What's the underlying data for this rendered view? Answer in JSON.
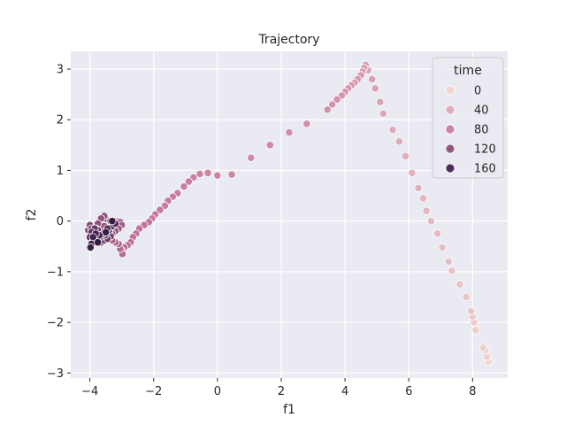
{
  "chart_data": {
    "type": "scatter",
    "title": "Trajectory",
    "xlabel": "f1",
    "ylabel": "f2",
    "xlim": [
      -4.6,
      9.1
    ],
    "ylim": [
      -3.1,
      3.35
    ],
    "xticks": [
      -4,
      -2,
      0,
      2,
      4,
      6,
      8
    ],
    "yticks": [
      -3,
      -2,
      -1,
      0,
      1,
      2,
      3
    ],
    "grid": true,
    "hue_variable": "time",
    "hue_range": [
      0,
      180
    ],
    "legend": {
      "title": "time",
      "placement": "top-right",
      "entries": [
        {
          "label": "0",
          "value": 0
        },
        {
          "label": "40",
          "value": 40
        },
        {
          "label": "80",
          "value": 80
        },
        {
          "label": "120",
          "value": 120
        },
        {
          "label": "160",
          "value": 160
        }
      ]
    },
    "colors": {
      "background": "#eaeaf2",
      "grid": "#ffffff",
      "hue_light": "#f0d6cf",
      "hue_mid": "#c8779e",
      "hue_dark": "#2f1641"
    },
    "points": [
      {
        "x": 8.5,
        "y": -2.78,
        "t": 0
      },
      {
        "x": 8.45,
        "y": -2.68,
        "t": 2
      },
      {
        "x": 8.4,
        "y": -2.55,
        "t": 4
      },
      {
        "x": 8.33,
        "y": -2.5,
        "t": 6
      },
      {
        "x": 8.1,
        "y": -2.15,
        "t": 8
      },
      {
        "x": 8.05,
        "y": -2.0,
        "t": 10
      },
      {
        "x": 8.0,
        "y": -1.88,
        "t": 12
      },
      {
        "x": 7.95,
        "y": -1.78,
        "t": 14
      },
      {
        "x": 7.8,
        "y": -1.5,
        "t": 16
      },
      {
        "x": 7.6,
        "y": -1.25,
        "t": 18
      },
      {
        "x": 7.35,
        "y": -0.98,
        "t": 20
      },
      {
        "x": 7.25,
        "y": -0.8,
        "t": 22
      },
      {
        "x": 7.05,
        "y": -0.52,
        "t": 24
      },
      {
        "x": 6.9,
        "y": -0.25,
        "t": 26
      },
      {
        "x": 6.7,
        "y": 0.0,
        "t": 28
      },
      {
        "x": 6.55,
        "y": 0.2,
        "t": 30
      },
      {
        "x": 6.45,
        "y": 0.45,
        "t": 32
      },
      {
        "x": 6.3,
        "y": 0.65,
        "t": 34
      },
      {
        "x": 6.1,
        "y": 0.95,
        "t": 36
      },
      {
        "x": 5.9,
        "y": 1.28,
        "t": 38
      },
      {
        "x": 5.7,
        "y": 1.57,
        "t": 40
      },
      {
        "x": 5.5,
        "y": 1.8,
        "t": 42
      },
      {
        "x": 5.2,
        "y": 2.12,
        "t": 44
      },
      {
        "x": 5.1,
        "y": 2.35,
        "t": 46
      },
      {
        "x": 4.95,
        "y": 2.62,
        "t": 48
      },
      {
        "x": 4.85,
        "y": 2.8,
        "t": 50
      },
      {
        "x": 4.72,
        "y": 2.98,
        "t": 52
      },
      {
        "x": 4.65,
        "y": 3.08,
        "t": 54
      },
      {
        "x": 4.6,
        "y": 3.02,
        "t": 55
      },
      {
        "x": 4.55,
        "y": 2.95,
        "t": 56
      },
      {
        "x": 4.5,
        "y": 2.88,
        "t": 57
      },
      {
        "x": 4.4,
        "y": 2.8,
        "t": 58
      },
      {
        "x": 4.3,
        "y": 2.73,
        "t": 59
      },
      {
        "x": 4.2,
        "y": 2.68,
        "t": 60
      },
      {
        "x": 4.1,
        "y": 2.62,
        "t": 61
      },
      {
        "x": 4.0,
        "y": 2.55,
        "t": 62
      },
      {
        "x": 3.9,
        "y": 2.48,
        "t": 63
      },
      {
        "x": 3.75,
        "y": 2.4,
        "t": 64
      },
      {
        "x": 3.6,
        "y": 2.3,
        "t": 65
      },
      {
        "x": 3.45,
        "y": 2.2,
        "t": 66
      },
      {
        "x": 2.8,
        "y": 1.92,
        "t": 68
      },
      {
        "x": 2.25,
        "y": 1.75,
        "t": 70
      },
      {
        "x": 1.65,
        "y": 1.5,
        "t": 72
      },
      {
        "x": 1.05,
        "y": 1.25,
        "t": 74
      },
      {
        "x": 0.45,
        "y": 0.92,
        "t": 76
      },
      {
        "x": 0.0,
        "y": 0.9,
        "t": 78
      },
      {
        "x": -0.3,
        "y": 0.95,
        "t": 80
      },
      {
        "x": -0.55,
        "y": 0.93,
        "t": 81
      },
      {
        "x": -0.75,
        "y": 0.86,
        "t": 82
      },
      {
        "x": -0.9,
        "y": 0.78,
        "t": 83
      },
      {
        "x": -1.05,
        "y": 0.68,
        "t": 84
      },
      {
        "x": -1.25,
        "y": 0.55,
        "t": 85
      },
      {
        "x": -1.4,
        "y": 0.48,
        "t": 86
      },
      {
        "x": -1.55,
        "y": 0.4,
        "t": 87
      },
      {
        "x": -1.65,
        "y": 0.3,
        "t": 88
      },
      {
        "x": -1.8,
        "y": 0.22,
        "t": 89
      },
      {
        "x": -1.95,
        "y": 0.13,
        "t": 90
      },
      {
        "x": -2.05,
        "y": 0.05,
        "t": 91
      },
      {
        "x": -2.15,
        "y": -0.02,
        "t": 92
      },
      {
        "x": -2.3,
        "y": -0.08,
        "t": 93
      },
      {
        "x": -2.45,
        "y": -0.15,
        "t": 94
      },
      {
        "x": -2.55,
        "y": -0.25,
        "t": 95
      },
      {
        "x": -2.65,
        "y": -0.32,
        "t": 96
      },
      {
        "x": -2.72,
        "y": -0.42,
        "t": 97
      },
      {
        "x": -2.82,
        "y": -0.48,
        "t": 98
      },
      {
        "x": -2.92,
        "y": -0.52,
        "t": 99
      },
      {
        "x": -3.0,
        "y": -0.58,
        "t": 100
      },
      {
        "x": -2.98,
        "y": -0.65,
        "t": 101
      },
      {
        "x": -3.05,
        "y": -0.55,
        "t": 102
      },
      {
        "x": -3.1,
        "y": -0.45,
        "t": 103
      },
      {
        "x": -3.2,
        "y": -0.42,
        "t": 104
      },
      {
        "x": -3.3,
        "y": -0.38,
        "t": 105
      },
      {
        "x": -3.4,
        "y": -0.32,
        "t": 106
      },
      {
        "x": -3.5,
        "y": -0.28,
        "t": 107
      },
      {
        "x": -3.45,
        "y": -0.2,
        "t": 108
      },
      {
        "x": -3.35,
        "y": -0.1,
        "t": 109
      },
      {
        "x": -3.25,
        "y": -0.05,
        "t": 110
      },
      {
        "x": -3.15,
        "y": 0.0,
        "t": 111
      },
      {
        "x": -3.05,
        "y": -0.02,
        "t": 112
      },
      {
        "x": -3.0,
        "y": -0.08,
        "t": 113
      },
      {
        "x": -3.1,
        "y": -0.15,
        "t": 114
      },
      {
        "x": -3.2,
        "y": -0.2,
        "t": 115
      },
      {
        "x": -3.3,
        "y": -0.25,
        "t": 116
      },
      {
        "x": -3.45,
        "y": -0.3,
        "t": 117
      },
      {
        "x": -3.55,
        "y": -0.35,
        "t": 118
      },
      {
        "x": -3.6,
        "y": -0.25,
        "t": 119
      },
      {
        "x": -3.55,
        "y": -0.1,
        "t": 120
      },
      {
        "x": -3.5,
        "y": 0.05,
        "t": 121
      },
      {
        "x": -3.55,
        "y": 0.1,
        "t": 122
      },
      {
        "x": -3.65,
        "y": 0.05,
        "t": 123
      },
      {
        "x": -3.75,
        "y": -0.05,
        "t": 124
      },
      {
        "x": -3.8,
        "y": -0.15,
        "t": 125
      },
      {
        "x": -3.85,
        "y": -0.25,
        "t": 126
      },
      {
        "x": -3.9,
        "y": -0.3,
        "t": 127
      },
      {
        "x": -3.95,
        "y": -0.35,
        "t": 128
      },
      {
        "x": -4.0,
        "y": -0.3,
        "t": 129
      },
      {
        "x": -4.05,
        "y": -0.18,
        "t": 130
      },
      {
        "x": -4.0,
        "y": -0.08,
        "t": 131
      },
      {
        "x": -3.95,
        "y": -0.15,
        "t": 132
      },
      {
        "x": -3.9,
        "y": -0.22,
        "t": 133
      },
      {
        "x": -3.85,
        "y": -0.32,
        "t": 134
      },
      {
        "x": -3.75,
        "y": -0.38,
        "t": 135
      },
      {
        "x": -3.65,
        "y": -0.42,
        "t": 136
      },
      {
        "x": -3.55,
        "y": -0.38,
        "t": 137
      },
      {
        "x": -3.45,
        "y": -0.3,
        "t": 138
      },
      {
        "x": -3.4,
        "y": -0.22,
        "t": 139
      },
      {
        "x": -3.35,
        "y": -0.12,
        "t": 140
      },
      {
        "x": -3.3,
        "y": -0.02,
        "t": 141
      },
      {
        "x": -3.25,
        "y": 0.0,
        "t": 142
      },
      {
        "x": -3.35,
        "y": -0.3,
        "t": 143
      },
      {
        "x": -3.45,
        "y": -0.35,
        "t": 144
      },
      {
        "x": -3.55,
        "y": -0.28,
        "t": 145
      },
      {
        "x": -3.65,
        "y": -0.22,
        "t": 146
      },
      {
        "x": -3.75,
        "y": -0.18,
        "t": 147
      },
      {
        "x": -3.85,
        "y": -0.15,
        "t": 148
      },
      {
        "x": -3.95,
        "y": -0.22,
        "t": 149
      },
      {
        "x": -4.0,
        "y": -0.32,
        "t": 150
      },
      {
        "x": -3.92,
        "y": -0.42,
        "t": 151
      },
      {
        "x": -3.82,
        "y": -0.38,
        "t": 152
      },
      {
        "x": -3.72,
        "y": -0.32,
        "t": 153
      },
      {
        "x": -3.62,
        "y": -0.3,
        "t": 154
      },
      {
        "x": -3.52,
        "y": -0.28,
        "t": 155
      },
      {
        "x": -3.4,
        "y": -0.18,
        "t": 156
      },
      {
        "x": -3.3,
        "y": -0.1,
        "t": 157
      },
      {
        "x": -3.2,
        "y": -0.05,
        "t": 158
      },
      {
        "x": -3.35,
        "y": 0.0,
        "t": 159
      },
      {
        "x": -3.45,
        "y": -0.15,
        "t": 160
      },
      {
        "x": -3.58,
        "y": -0.25,
        "t": 162
      },
      {
        "x": -3.7,
        "y": -0.28,
        "t": 164
      },
      {
        "x": -3.82,
        "y": -0.25,
        "t": 166
      },
      {
        "x": -3.9,
        "y": -0.32,
        "t": 168
      },
      {
        "x": -3.95,
        "y": -0.45,
        "t": 170
      },
      {
        "x": -3.98,
        "y": -0.52,
        "t": 172
      },
      {
        "x": -3.5,
        "y": -0.22,
        "t": 174
      },
      {
        "x": -3.3,
        "y": 0.0,
        "t": 176
      },
      {
        "x": -3.75,
        "y": -0.42,
        "t": 178
      }
    ]
  }
}
